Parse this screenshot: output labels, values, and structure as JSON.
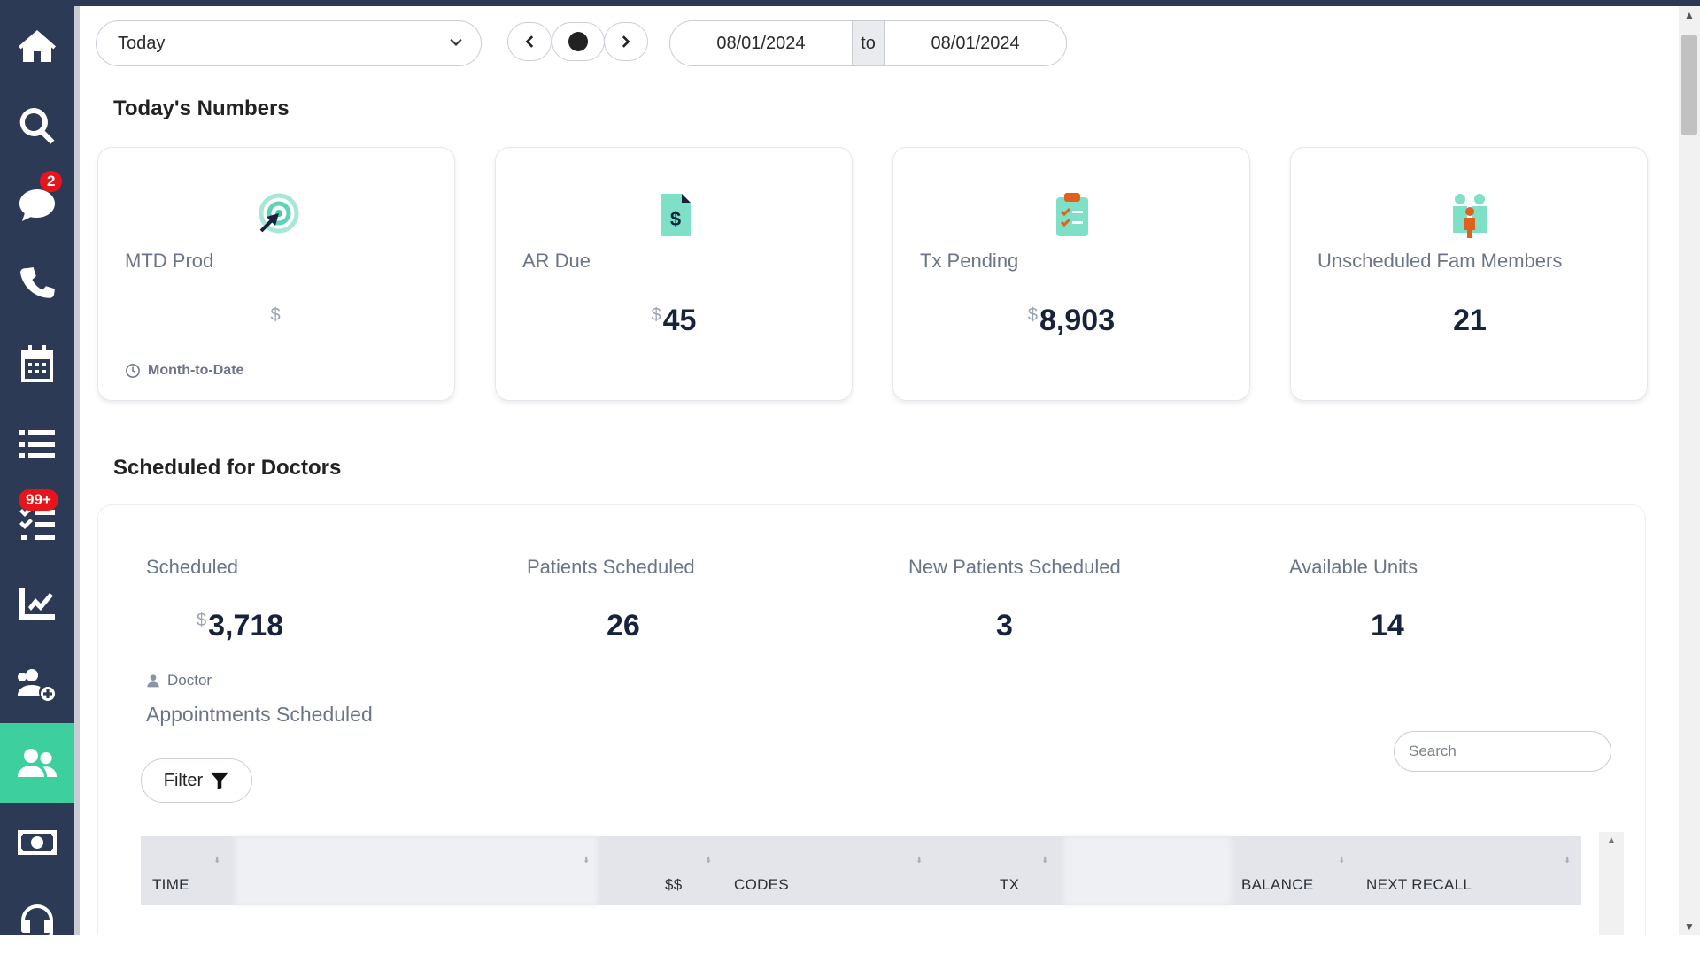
{
  "sidebar": {
    "items": [
      {
        "name": "home",
        "icon": "home-icon"
      },
      {
        "name": "search",
        "icon": "search-icon"
      },
      {
        "name": "messages",
        "icon": "chat-icon",
        "badge": "2"
      },
      {
        "name": "phone",
        "icon": "phone-icon"
      },
      {
        "name": "calendar",
        "icon": "calendar-icon"
      },
      {
        "name": "list",
        "icon": "list-icon"
      },
      {
        "name": "tasks",
        "icon": "checklist-icon",
        "badge": "99+"
      },
      {
        "name": "reports",
        "icon": "chart-line-icon"
      },
      {
        "name": "add-patient",
        "icon": "user-plus-icon"
      },
      {
        "name": "patients",
        "icon": "users-icon",
        "active": true
      },
      {
        "name": "billing",
        "icon": "money-icon"
      },
      {
        "name": "support",
        "icon": "headset-icon"
      }
    ],
    "active_color": "#3ecf9f",
    "bg_color": "#2d3a55"
  },
  "toolbar": {
    "period_value": "Today",
    "date_from": "08/01/2024",
    "date_sep": "to",
    "date_to": "08/01/2024"
  },
  "todays_numbers": {
    "title": "Today's Numbers",
    "cards": [
      {
        "label": "MTD Prod",
        "currency": "$",
        "value": "",
        "footer": "Month-to-Date",
        "icon": "target-icon"
      },
      {
        "label": "AR Due",
        "currency": "$",
        "value": "45",
        "icon": "invoice-dollar-icon"
      },
      {
        "label": "Tx Pending",
        "currency": "$",
        "value": "8,903",
        "icon": "clipboard-check-icon"
      },
      {
        "label": "Unscheduled Fam Members",
        "currency": "",
        "value": "21",
        "icon": "family-icon"
      }
    ]
  },
  "doctors": {
    "title": "Scheduled for Doctors",
    "stats": [
      {
        "label": "Scheduled",
        "currency": "$",
        "value": "3,718"
      },
      {
        "label": "Patients Scheduled",
        "value": "26"
      },
      {
        "label": "New Patients Scheduled",
        "value": "3"
      },
      {
        "label": "Available Units",
        "value": "14"
      }
    ],
    "provider_label": "Doctor",
    "appointments_title": "Appointments Scheduled",
    "filter_label": "Filter",
    "search_placeholder": "Search",
    "columns": [
      "TIME",
      "$$",
      "CODES",
      "TX",
      "BALANCE",
      "NEXT RECALL"
    ]
  }
}
